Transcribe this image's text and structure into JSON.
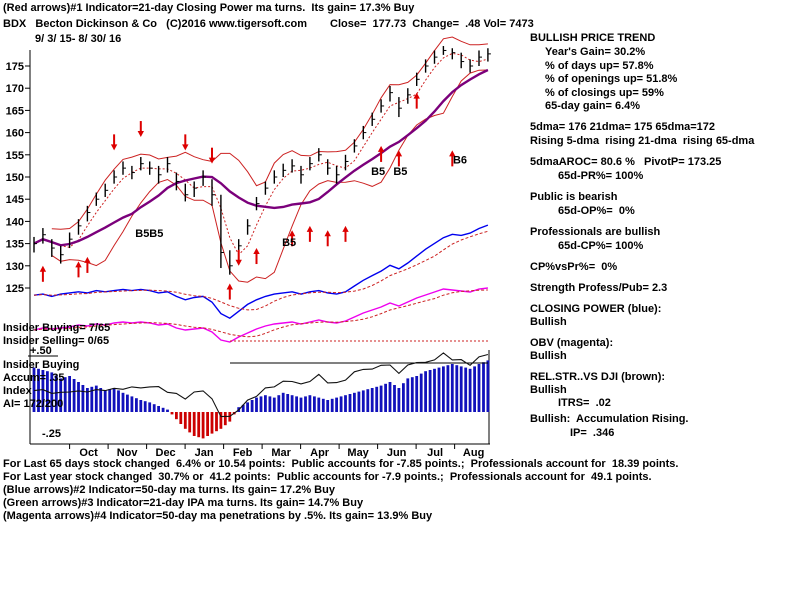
{
  "header": {
    "line1": "(Red arrows)#1 Indicator=21-day Closing Power ma turns.  Its gain= 17.3% Buy",
    "symbol_line": "BDX   Becton Dickinson & Co   (C)2016 www.tigersoft.com",
    "quote_line": "Close=  177.73  Change=  .48 Vol= 7473",
    "date_range": "9/ 3/ 15- 8/ 30/ 16"
  },
  "left_panel": {
    "insider_buying": "Insider Buying= 7/65",
    "insider_selling": "Insider Selling= 0/65",
    "plus_level": "+.50",
    "insider_buying2": "Insider Buying",
    "accum": "Accum= .35",
    "index_label": "Index",
    "ai": "AI= 172/200",
    "minus_level": "-.25"
  },
  "right_panel": {
    "title": "BULLISH PRICE TREND",
    "years_gain": "Year's Gain= 30.2%",
    "days_up": "% of days up= 57.8%",
    "openings_up": "% of openings up= 51.8%",
    "closings_up": "% of closings up= 59%",
    "gain65": "65-day gain= 6.4%",
    "dmas": "5dma= 176 21dma= 175 65dma=172",
    "rising": "Rising 5-dma  rising 21-dma  rising 65-dma",
    "aroc": "5dmaAROC= 80.6 %   PivotP= 173.25",
    "pr": "65d-PR%= 100%",
    "public": "Public is bearish",
    "op": "65d-OP%=  0%",
    "prof": "Professionals are bullish",
    "cp": "65d-CP%= 100%",
    "cpvspr": "CP%vsPr%=  0%",
    "strength": "Strength Profess/Pub= 2.3",
    "cp_title": "CLOSING POWER (blue):",
    "cp_status": "Bullish",
    "obv_title": "OBV (magenta):",
    "obv_status": "Bullish",
    "rs_title": "REL.STR..VS DJI (brown):",
    "rs_status": "Bullish",
    "itrs": "ITRS=  .02",
    "accum_line": "Bullish:  Accumulation Rising.",
    "ip": "IP=  .346"
  },
  "footer": {
    "line1": "For Last 65 days stock changed  6.4% or 10.54 points:  Public accounts for -7.85 points.;  Professionals account for  18.39 points.",
    "line2": "For Last year stock changed  30.7% or  41.2 points:  Public accounts for -7.9 points.;  Professionals account for  49.1 points.",
    "line3": "(Blue arrows)#2 Indicator=50-day ma turns. Its gain= 17.2% Buy",
    "line4": "(Green arrows)#3 Indicator=21-day IPA ma turns. Its gain= 14.7% Buy",
    "line5": "(Magenta arrows)#4 Indicator=50-day ma penetrations by .5%. Its gain= 13.9% Buy"
  },
  "chart_data": {
    "type": "candlestick",
    "symbol": "BDX",
    "title": "BDX Becton Dickinson & Co 9/3/15 - 8/30/16",
    "ylim": [
      123,
      180
    ],
    "y_ticks": [
      175,
      170,
      165,
      160,
      155,
      150,
      145,
      140,
      135,
      130,
      125
    ],
    "months": [
      "Oct",
      "Nov",
      "Dec",
      "Jan",
      "Feb",
      "Mar",
      "Apr",
      "May",
      "Jun",
      "Jul",
      "Aug"
    ],
    "x_unit": "week",
    "weekly": {
      "high": [
        136.5,
        138.5,
        136.0,
        134.5,
        137.5,
        140.5,
        143.5,
        146.5,
        148.5,
        151.5,
        153.5,
        152.5,
        154.5,
        153.5,
        152.5,
        154.5,
        151.0,
        148.5,
        149.0,
        151.5,
        149.5,
        146.0,
        133.5,
        136.0,
        140.5,
        145.5,
        149.0,
        151.5,
        153.0,
        154.0,
        152.5,
        154.5,
        156.5,
        154.0,
        152.5,
        155.0,
        158.5,
        161.5,
        164.5,
        167.5,
        170.5,
        168.0,
        170.0,
        173.5,
        176.5,
        178.5,
        179.5,
        179.0,
        178.0,
        176.5,
        178.5,
        179.0
      ],
      "low": [
        133.0,
        135.0,
        132.0,
        130.5,
        134.0,
        137.0,
        140.0,
        143.5,
        145.5,
        148.5,
        150.5,
        149.5,
        151.5,
        150.5,
        148.5,
        151.0,
        147.0,
        144.5,
        145.5,
        148.0,
        143.5,
        129.5,
        128.0,
        132.5,
        137.0,
        142.5,
        146.0,
        148.5,
        150.0,
        151.0,
        148.5,
        151.5,
        153.5,
        150.5,
        148.5,
        151.5,
        155.5,
        158.5,
        161.5,
        164.5,
        167.0,
        163.5,
        166.5,
        170.5,
        173.5,
        175.5,
        177.5,
        176.5,
        174.5,
        173.5,
        175.0,
        176.0
      ],
      "close": [
        135.0,
        137.0,
        134.0,
        132.5,
        136.0,
        139.0,
        142.0,
        145.0,
        147.0,
        150.0,
        152.0,
        151.0,
        153.0,
        152.0,
        150.5,
        153.0,
        149.0,
        146.0,
        147.5,
        150.0,
        146.0,
        133.0,
        130.0,
        134.5,
        139.0,
        144.0,
        147.5,
        150.0,
        151.5,
        152.5,
        150.5,
        153.0,
        155.0,
        152.0,
        150.5,
        153.5,
        157.0,
        160.0,
        163.0,
        166.0,
        169.0,
        165.5,
        168.5,
        172.0,
        175.0,
        177.0,
        178.5,
        178.0,
        176.0,
        175.0,
        177.0,
        177.73
      ]
    },
    "closing_power": [
      32,
      33,
      31,
      33,
      34,
      35,
      34,
      36,
      35,
      36,
      37,
      36,
      37,
      36,
      34,
      35,
      31,
      28,
      30,
      31,
      26,
      16,
      12,
      18,
      24,
      28,
      31,
      33,
      34,
      35,
      33,
      35,
      36,
      34,
      33,
      35,
      40,
      45,
      49,
      53,
      58,
      55,
      60,
      66,
      72,
      77,
      82,
      85,
      84,
      86,
      90,
      93
    ],
    "obv": [
      20,
      22,
      21,
      22,
      23,
      25,
      24,
      26,
      25,
      27,
      28,
      27,
      28,
      27,
      25,
      26,
      22,
      20,
      21,
      22,
      18,
      10,
      8,
      13,
      17,
      21,
      24,
      26,
      27,
      28,
      26,
      28,
      30,
      28,
      27,
      29,
      33,
      37,
      40,
      43,
      47,
      44,
      48,
      52,
      55,
      58,
      61,
      60,
      59,
      58,
      61,
      62
    ],
    "rel_strength": [
      31,
      34,
      29,
      32,
      30,
      33,
      30,
      34,
      31,
      35,
      32,
      36,
      33,
      36,
      34,
      32,
      29,
      27,
      30,
      33,
      25,
      14,
      12,
      19,
      24,
      29,
      33,
      36,
      38,
      40,
      36,
      40,
      43,
      39,
      37,
      41,
      45,
      49,
      47,
      52,
      50,
      46,
      50,
      54,
      52,
      56,
      59,
      56,
      54,
      52,
      56,
      60
    ],
    "accum_index": [
      0.37,
      0.35,
      0.33,
      0.28,
      0.3,
      0.25,
      0.2,
      0.22,
      0.18,
      0.2,
      0.16,
      0.13,
      0.1,
      0.08,
      0.05,
      0.02,
      -0.06,
      -0.14,
      -0.2,
      -0.22,
      -0.18,
      -0.14,
      -0.08,
      0.04,
      0.08,
      0.12,
      0.14,
      0.12,
      0.16,
      0.14,
      0.12,
      0.14,
      0.12,
      0.1,
      0.12,
      0.14,
      0.16,
      0.18,
      0.2,
      0.22,
      0.25,
      0.2,
      0.28,
      0.3,
      0.34,
      0.36,
      0.38,
      0.4,
      0.38,
      0.36,
      0.4,
      0.43
    ],
    "arrows_up": [
      {
        "i": 1,
        "p": 130
      },
      {
        "i": 5,
        "p": 131
      },
      {
        "i": 6,
        "p": 132
      },
      {
        "i": 22,
        "p": 126
      },
      {
        "i": 25,
        "p": 134
      },
      {
        "i": 29,
        "p": 138
      },
      {
        "i": 31,
        "p": 139
      },
      {
        "i": 33,
        "p": 138
      },
      {
        "i": 35,
        "p": 139
      },
      {
        "i": 39,
        "p": 157
      },
      {
        "i": 41,
        "p": 156
      },
      {
        "i": 43,
        "p": 169
      },
      {
        "i": 47,
        "p": 156
      }
    ],
    "arrows_down": [
      {
        "i": 9,
        "p": 156
      },
      {
        "i": 12,
        "p": 159
      },
      {
        "i": 17,
        "p": 156
      },
      {
        "i": 20,
        "p": 153
      },
      {
        "i": 23,
        "p": 130
      }
    ],
    "buy_labels": [
      {
        "text": "B5B5",
        "i": 12.5,
        "p": 136.5
      },
      {
        "text": "B5",
        "i": 29,
        "p": 134.5
      },
      {
        "text": "B5",
        "i": 39,
        "p": 150.5
      },
      {
        "text": "B5",
        "i": 41.5,
        "p": 150.5
      },
      {
        "text": "B6",
        "i": 48.2,
        "p": 153
      }
    ],
    "colors": {
      "price": "#000000",
      "ma": "#7b007b",
      "band": "#cc2222",
      "cp": "#0000ee",
      "obv": "#ee00ee",
      "rs": "#111111",
      "hist_pos": "#1111bb",
      "hist_neg": "#cc0000",
      "arrow": "#dd0000"
    }
  }
}
